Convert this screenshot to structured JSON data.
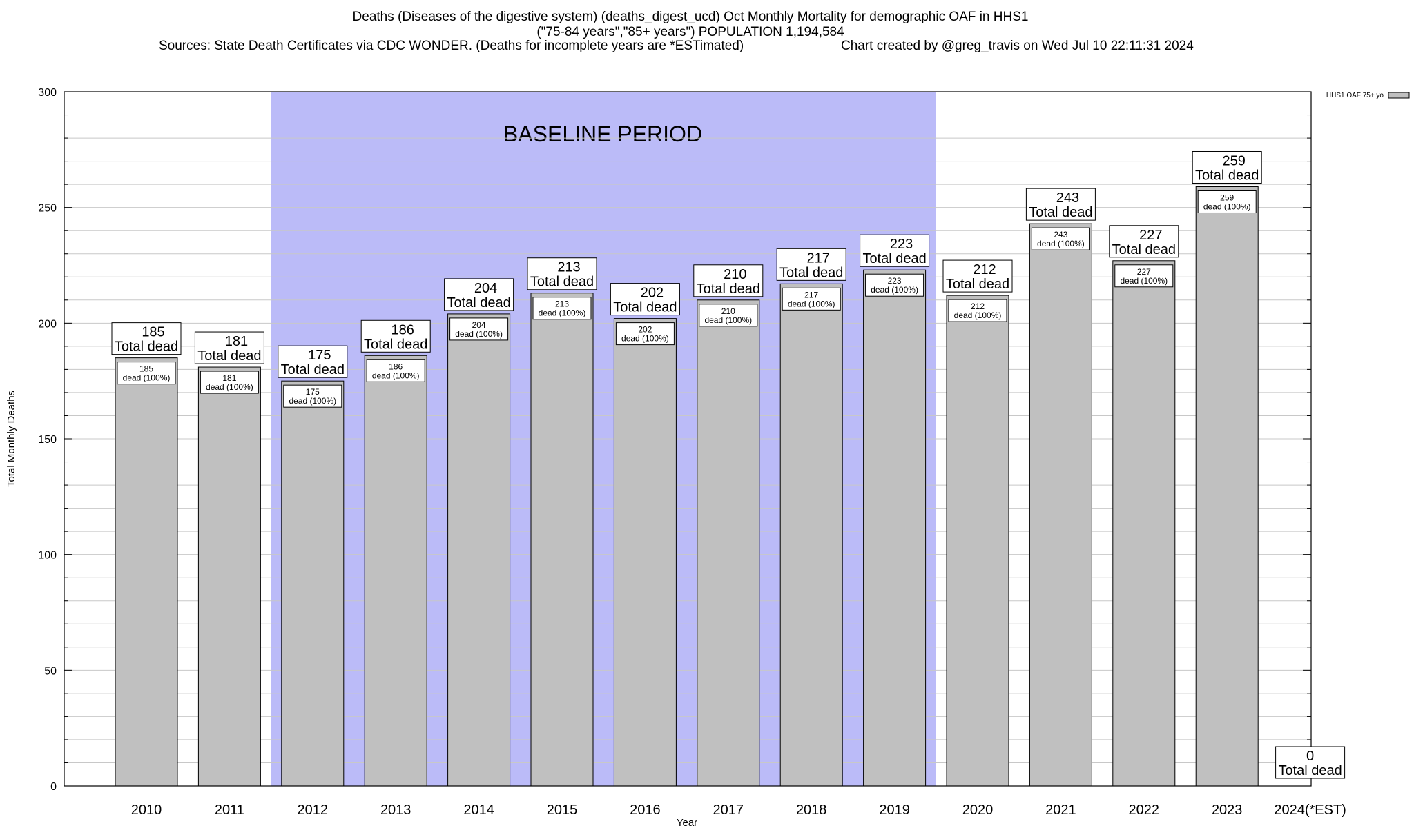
{
  "chart_data": {
    "type": "bar",
    "title_lines": [
      "Deaths (Diseases of the digestive system) (deaths_digest_ucd) Oct Monthly Mortality for demographic OAF in HHS1",
      "(\"75-84 years\",\"85+ years\") POPULATION 1,194,584",
      "Sources: State Death Certificates via CDC WONDER. (Deaths for incomplete years are *ESTimated)",
      "Chart created by @greg_travis on Wed Jul 10 22:11:31 2024"
    ],
    "xlabel": "Year",
    "ylabel": "Total Monthly Deaths",
    "ylim": [
      0,
      300
    ],
    "yticks": [
      0,
      50,
      100,
      150,
      200,
      250,
      300
    ],
    "minor_grid_step": 10,
    "grid": true,
    "legend": {
      "position": "top-right",
      "entries": [
        "HHS1 OAF 75+ yo"
      ]
    },
    "categories": [
      "2010",
      "2011",
      "2012",
      "2013",
      "2014",
      "2015",
      "2016",
      "2017",
      "2018",
      "2019",
      "2020",
      "2021",
      "2022",
      "2023",
      "2024(*EST)"
    ],
    "values": [
      185,
      181,
      175,
      186,
      204,
      213,
      202,
      210,
      217,
      223,
      212,
      243,
      227,
      259,
      0
    ],
    "total_label": "Total dead",
    "inner_label": "dead (100%)",
    "baseline": {
      "label": "BASELINE PERIOD",
      "start": "2012",
      "end": "2019"
    },
    "colors": {
      "bar": "#c0c0c0",
      "baseline": "#bbbbf8",
      "grid": "#c8c8c8"
    }
  }
}
